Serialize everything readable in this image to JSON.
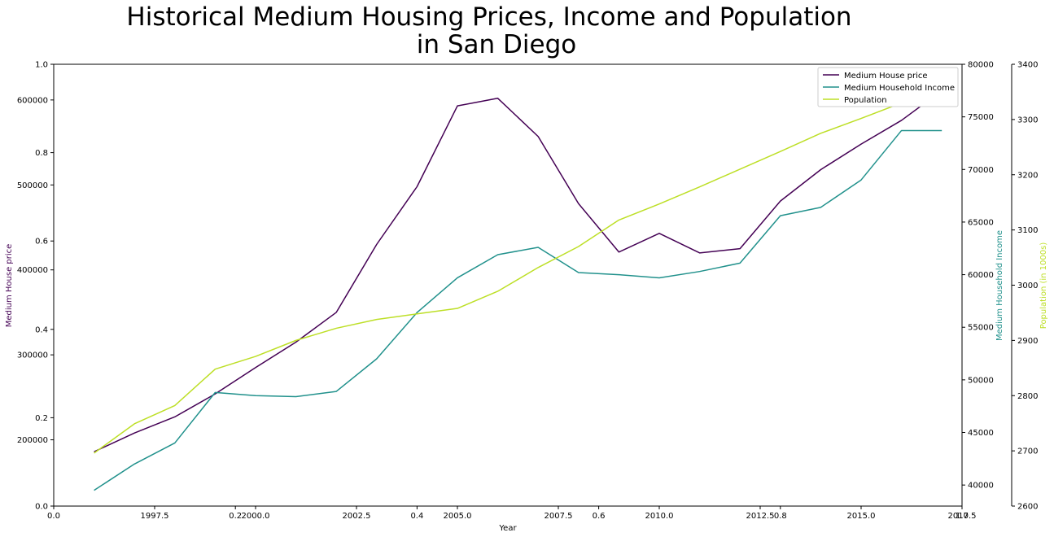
{
  "chart_data": {
    "type": "line",
    "title_lines": [
      "Historical Medium Housing Prices, Income and Population",
      "in San Diego"
    ],
    "xlabel": "Year",
    "x": [
      1996,
      1997,
      1998,
      1999,
      2000,
      2001,
      2002,
      2003,
      2004,
      2005,
      2006,
      2007,
      2008,
      2009,
      2010,
      2011,
      2012,
      2013,
      2014,
      2015,
      2016,
      2017
    ],
    "xlim": [
      1995,
      2017.5
    ],
    "xticks": [
      1997.5,
      2000.0,
      2002.5,
      2005.0,
      2007.5,
      2010.0,
      2012.5,
      2015.0,
      2017.5
    ],
    "xtick_labels": [
      "1997.5",
      "2000.0",
      "2002.5",
      "2005.0",
      "2007.5",
      "2010.0",
      "2012.5",
      "2015.0",
      "2017.5"
    ],
    "base_axis": {
      "xlim": [
        0.0,
        1.0
      ],
      "ylim": [
        0.0,
        1.0
      ],
      "xticks": [
        0.0,
        0.2,
        0.4,
        0.6,
        0.8,
        1.0
      ],
      "xtick_labels": [
        "0.0",
        "0.2",
        "0.4",
        "0.6",
        "0.8",
        "1.0"
      ],
      "yticks": [
        0.0,
        0.2,
        0.4,
        0.6,
        0.8,
        1.0
      ],
      "ytick_labels": [
        "0.0",
        "0.2",
        "0.4",
        "0.6",
        "0.8",
        "1.0"
      ]
    },
    "series": [
      {
        "name": "Medium House price",
        "axis": "left",
        "ylabel": "Medium House price",
        "color": "#440154",
        "ylim": [
          122000,
          642000
        ],
        "yticks": [
          200000,
          300000,
          400000,
          500000,
          600000
        ],
        "ytick_labels": [
          "200000",
          "300000",
          "400000",
          "500000",
          "600000"
        ],
        "values": [
          186000,
          208000,
          227000,
          254000,
          285000,
          315000,
          350000,
          430000,
          498000,
          593000,
          602000,
          557000,
          478000,
          421000,
          443000,
          420000,
          425000,
          481000,
          518000,
          548000,
          576000,
          611000
        ]
      },
      {
        "name": "Medium Household Income",
        "axis": "right",
        "ylabel": "Medium Household Income",
        "color": "#21918c",
        "ylim": [
          38000,
          80000
        ],
        "yticks": [
          40000,
          45000,
          50000,
          55000,
          60000,
          65000,
          70000,
          75000,
          80000
        ],
        "ytick_labels": [
          "40000",
          "45000",
          "50000",
          "55000",
          "60000",
          "65000",
          "70000",
          "75000",
          "80000"
        ],
        "values": [
          39500,
          42000,
          44000,
          48800,
          48500,
          48400,
          48900,
          52000,
          56400,
          59700,
          61900,
          62600,
          60200,
          60000,
          59700,
          60300,
          61100,
          65600,
          66400,
          69000,
          73700,
          73700
        ]
      },
      {
        "name": "Population",
        "axis": "right-outer",
        "ylabel": "Population (in 1000s)",
        "color": "#bddf26",
        "ylim": [
          2600,
          3400
        ],
        "yticks": [
          2600,
          2700,
          2800,
          2900,
          3000,
          3100,
          3200,
          3300,
          3400
        ],
        "ytick_labels": [
          "2600",
          "2700",
          "2800",
          "2900",
          "3000",
          "3100",
          "3200",
          "3300",
          "3400"
        ],
        "values": [
          2696,
          2749,
          2782,
          2848,
          2871,
          2900,
          2922,
          2938,
          2948,
          2958,
          2989,
          3032,
          3070,
          3118,
          3147,
          3178,
          3210,
          3242,
          3275,
          3302,
          3330,
          3356
        ]
      }
    ],
    "legend_position": "upper right",
    "grid": false
  }
}
